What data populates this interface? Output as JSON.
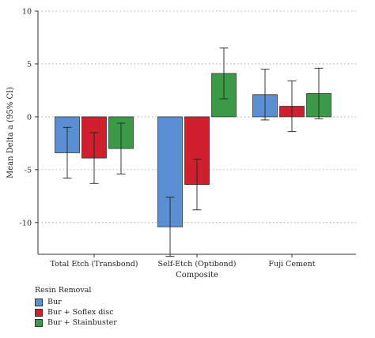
{
  "chart_data": {
    "type": "bar",
    "xlabel": "Composite",
    "ylabel": "Mean Delta a (95% CI)",
    "ylim": [
      -13,
      10
    ],
    "yticks": [
      10,
      5,
      0,
      -5,
      -10
    ],
    "grid": "horizontal dotted",
    "categories": [
      "Total Etch (Transbond)",
      "Self-Etch (Optibond)",
      "Fuji Cement"
    ],
    "series": [
      {
        "name": "Bur",
        "color": "#5b8fd3",
        "values": [
          -3.4,
          -10.4,
          2.1
        ],
        "ci_low": [
          -5.8,
          -13.2,
          -0.3
        ],
        "ci_high": [
          -1.0,
          -7.6,
          4.5
        ]
      },
      {
        "name": "Bur + Soflex disc",
        "color": "#d0202e",
        "values": [
          -3.9,
          -6.4,
          1.0
        ],
        "ci_low": [
          -6.3,
          -8.8,
          -1.4
        ],
        "ci_high": [
          -1.5,
          -4.0,
          3.4
        ]
      },
      {
        "name": "Bur + Stainbuster",
        "color": "#3b9a48",
        "values": [
          -3.0,
          4.1,
          2.2
        ],
        "ci_low": [
          -5.4,
          1.7,
          -0.2
        ],
        "ci_high": [
          -0.6,
          6.5,
          4.6
        ]
      }
    ],
    "legend": {
      "title": "Resin Removal",
      "position": "bottom-left"
    }
  }
}
